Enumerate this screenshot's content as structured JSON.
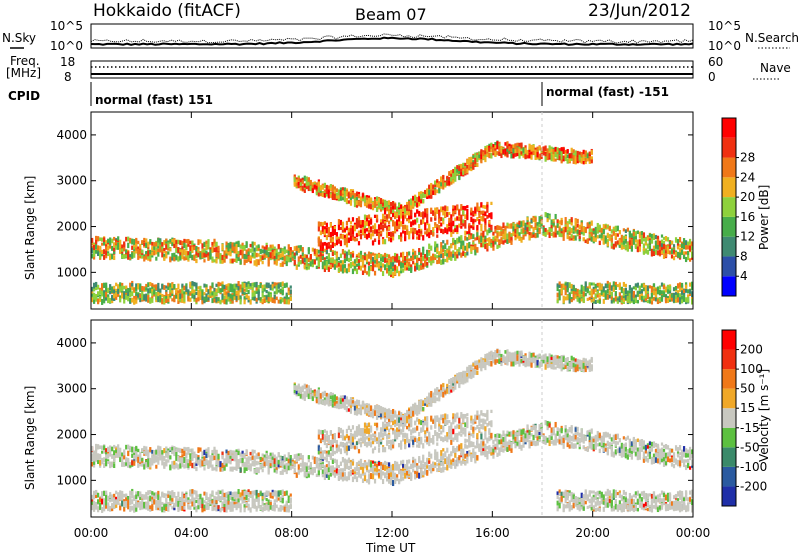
{
  "header": {
    "station": "Hokkaido (fitACF)",
    "beam": "Beam 07",
    "date": "23/Jun/2012"
  },
  "top_panel": {
    "left_label": "N.Sky",
    "right_label": "N.Search",
    "left_ticks": [
      "10^5",
      "10^0"
    ],
    "right_ticks": [
      "10^5",
      "10^0"
    ]
  },
  "freq_panel": {
    "left_label_1": "Freq.",
    "left_label_2": "[MHz]",
    "right_label": "Nave",
    "left_ticks": [
      "18",
      "8"
    ],
    "right_ticks": [
      "60",
      "0"
    ]
  },
  "cpid_panel": {
    "label": "CPID",
    "segments": [
      {
        "text": "normal (fast) 151",
        "start_hour": 0
      },
      {
        "text": "normal (fast) -151",
        "start_hour": 18
      }
    ]
  },
  "chart_data": [
    {
      "type": "heatmap",
      "name": "power",
      "xlabel": "",
      "ylabel": "Slant Range [km]",
      "xlim": [
        0,
        24
      ],
      "ylim": [
        200,
        4500
      ],
      "y_ticks": [
        "1000",
        "2000",
        "3000",
        "4000"
      ],
      "colorbar_label": "Power [dB]",
      "colorbar_ticks": [
        "4",
        "8",
        "12",
        "16",
        "20",
        "24",
        "28"
      ],
      "colorbar_colors": [
        "#0000ff",
        "#2c4fa8",
        "#3f8a72",
        "#47ad4a",
        "#8ed13c",
        "#f0b020",
        "#f07818",
        "#f03010",
        "#ff0000"
      ]
    },
    {
      "type": "heatmap",
      "name": "velocity",
      "xlabel": "Time UT",
      "ylabel": "Slant Range [km]",
      "xlim": [
        0,
        24
      ],
      "ylim": [
        200,
        4500
      ],
      "x_ticks": [
        "00:00",
        "04:00",
        "08:00",
        "12:00",
        "16:00",
        "20:00",
        "00:00"
      ],
      "y_ticks": [
        "1000",
        "2000",
        "3000",
        "4000"
      ],
      "colorbar_label": "Velocity [m s⁻¹]",
      "colorbar_ticks": [
        "200",
        "100",
        "50",
        "15",
        "-15",
        "-50",
        "-100",
        "-200"
      ],
      "colorbar_colors": [
        "#1f2fa8",
        "#2a5aa0",
        "#3a8a6a",
        "#5cc040",
        "#c8c8c0",
        "#f0a828",
        "#f07818",
        "#f03010",
        "#ff0000"
      ]
    }
  ]
}
